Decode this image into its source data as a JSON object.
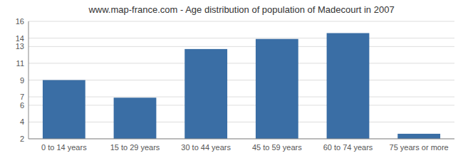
{
  "chart_data": {
    "type": "bar",
    "title": "www.map-france.com - Age distribution of population of Madecourt in 2007",
    "categories": [
      "0 to 14 years",
      "15 to 29 years",
      "30 to 44 years",
      "45 to 59 years",
      "60 to 74 years",
      "75 years or more"
    ],
    "values": [
      9.0,
      6.9,
      12.7,
      13.9,
      14.6,
      2.6
    ],
    "color": "#3a6ea5",
    "ylim": [
      2,
      16
    ],
    "yticks": [
      2,
      4,
      6,
      7,
      9,
      11,
      13,
      14,
      16
    ],
    "grid": true
  }
}
